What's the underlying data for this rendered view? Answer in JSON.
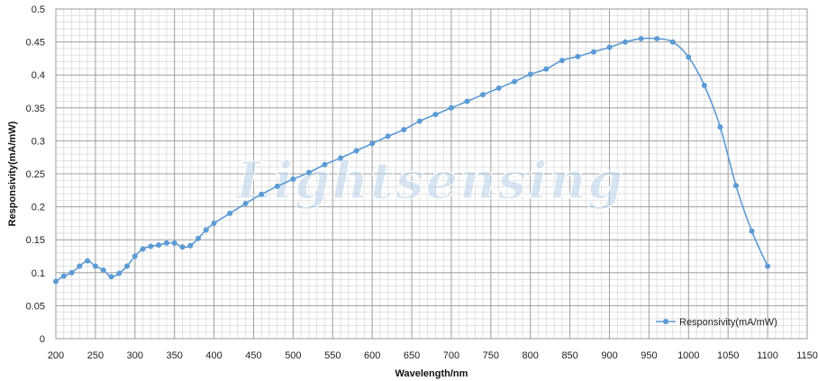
{
  "chart_data": {
    "type": "line",
    "title": "",
    "xlabel": "Wavelength/nm",
    "ylabel": "Responsivity(mA/mW)",
    "xlim": [
      200,
      1150
    ],
    "ylim": [
      0,
      0.5
    ],
    "x_ticks": [
      "200",
      "250",
      "300",
      "350",
      "400",
      "450",
      "500",
      "550",
      "600",
      "650",
      "700",
      "750",
      "800",
      "850",
      "900",
      "950",
      "1000",
      "1050",
      "1100",
      "1150"
    ],
    "y_ticks": [
      "0",
      "0.05",
      "0.1",
      "0.15",
      "0.2",
      "0.25",
      "0.3",
      "0.35",
      "0.4",
      "0.45",
      "0.5"
    ],
    "grid": true,
    "legend_position": "bottom-right",
    "watermark": "Lightsensing",
    "series": [
      {
        "name": "Responsivity(mA/mW)",
        "color": "#5b9bd5",
        "x": [
          200,
          210,
          220,
          230,
          240,
          250,
          260,
          270,
          280,
          290,
          300,
          310,
          320,
          330,
          340,
          350,
          360,
          370,
          380,
          390,
          400,
          420,
          440,
          460,
          480,
          500,
          520,
          540,
          560,
          580,
          600,
          620,
          640,
          660,
          680,
          700,
          720,
          740,
          760,
          780,
          800,
          820,
          840,
          860,
          880,
          900,
          920,
          940,
          960,
          980,
          1000,
          1020,
          1040,
          1060,
          1080,
          1100
        ],
        "y": [
          0.087,
          0.095,
          0.1,
          0.11,
          0.118,
          0.11,
          0.104,
          0.094,
          0.099,
          0.11,
          0.125,
          0.136,
          0.14,
          0.142,
          0.145,
          0.145,
          0.139,
          0.141,
          0.152,
          0.165,
          0.175,
          0.19,
          0.205,
          0.219,
          0.231,
          0.242,
          0.252,
          0.264,
          0.274,
          0.285,
          0.296,
          0.307,
          0.317,
          0.33,
          0.34,
          0.35,
          0.36,
          0.37,
          0.38,
          0.39,
          0.401,
          0.409,
          0.422,
          0.428,
          0.435,
          0.442,
          0.45,
          0.455,
          0.455,
          0.45,
          0.427,
          0.384,
          0.321,
          0.232,
          0.163,
          0.11
        ]
      }
    ]
  }
}
